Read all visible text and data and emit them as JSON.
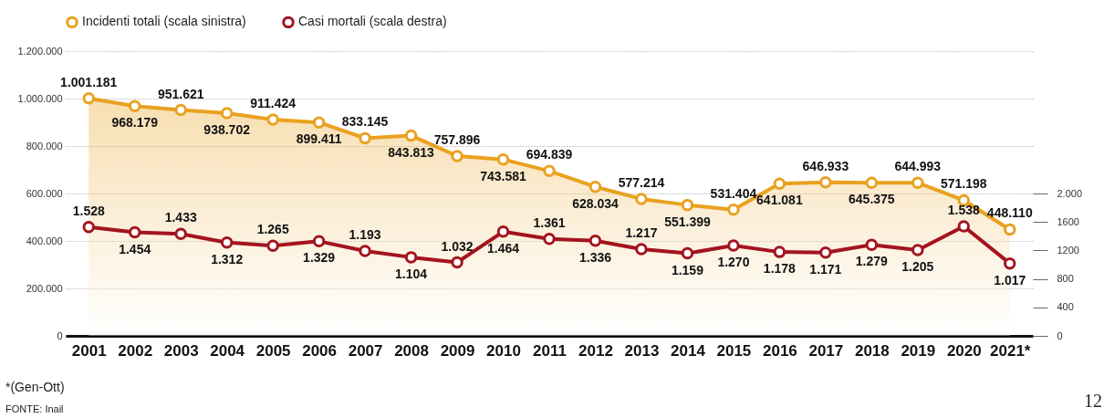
{
  "chart_data": {
    "type": "line",
    "categories": [
      "2001",
      "2002",
      "2003",
      "2004",
      "2005",
      "2006",
      "2007",
      "2008",
      "2009",
      "2010",
      "2011",
      "2012",
      "2013",
      "2014",
      "2015",
      "2016",
      "2017",
      "2018",
      "2019",
      "2020",
      "2021*"
    ],
    "series": [
      {
        "name": "Incidenti totali  (scala sinistra)",
        "type": "area",
        "color": "#e9a11f",
        "values": [
          1001181,
          968179,
          951621,
          938702,
          911424,
          899411,
          833145,
          843813,
          757896,
          743581,
          694839,
          628034,
          577214,
          551399,
          531404,
          641081,
          646933,
          645375,
          644993,
          571198,
          448110
        ],
        "value_labels": [
          "1.001.181",
          "968.179",
          "951.621",
          "938.702",
          "911.424",
          "899.411",
          "833.145",
          "843.813",
          "757.896",
          "743.581",
          "694.839",
          "628.034",
          "577.214",
          "551.399",
          "531.404",
          "641.081",
          "646.933",
          "645.375",
          "644.993",
          "571.198",
          "448.110"
        ]
      },
      {
        "name": "Casi mortali (scala destra)",
        "type": "line",
        "axis": "y2",
        "color": "#a3141e",
        "values": [
          1528,
          1454,
          1433,
          1312,
          1265,
          1329,
          1193,
          1104,
          1032,
          1464,
          1361,
          1336,
          1217,
          1159,
          1270,
          1178,
          1171,
          1279,
          1205,
          1538,
          1017
        ],
        "value_labels": [
          "1.528",
          "1.454",
          "1.433",
          "1.312",
          "1.265",
          "1.329",
          "1.193",
          "1.104",
          "1.032",
          "1.464",
          "1.361",
          "1.336",
          "1.217",
          "1.159",
          "1.270",
          "1.178",
          "1.171",
          "1.279",
          "1.205",
          "1.538",
          "1.017"
        ]
      }
    ],
    "ylim": [
      0,
      1200000
    ],
    "yticks": [
      0,
      {
        "value": 200000,
        "label": "200.000"
      },
      {
        "value": 400000,
        "label": "400.000"
      },
      {
        "value": 600000,
        "label": "600.000"
      },
      {
        "value": 800000,
        "label": "800.000"
      },
      {
        "value": 1000000,
        "label": "1.000.000"
      },
      {
        "value": 1200000,
        "label": "1.200.000"
      }
    ],
    "y2lim": [
      0,
      4000
    ],
    "y2ticks": [
      0,
      400,
      800,
      1200,
      1600,
      {
        "value": 2000,
        "label": "2.000"
      }
    ],
    "grid": "y",
    "legend": "top left",
    "marker": "circle",
    "line_style": "solid",
    "annotations": [
      "*(Gen-Ott)",
      "FONTE: Inail",
      "12"
    ]
  }
}
